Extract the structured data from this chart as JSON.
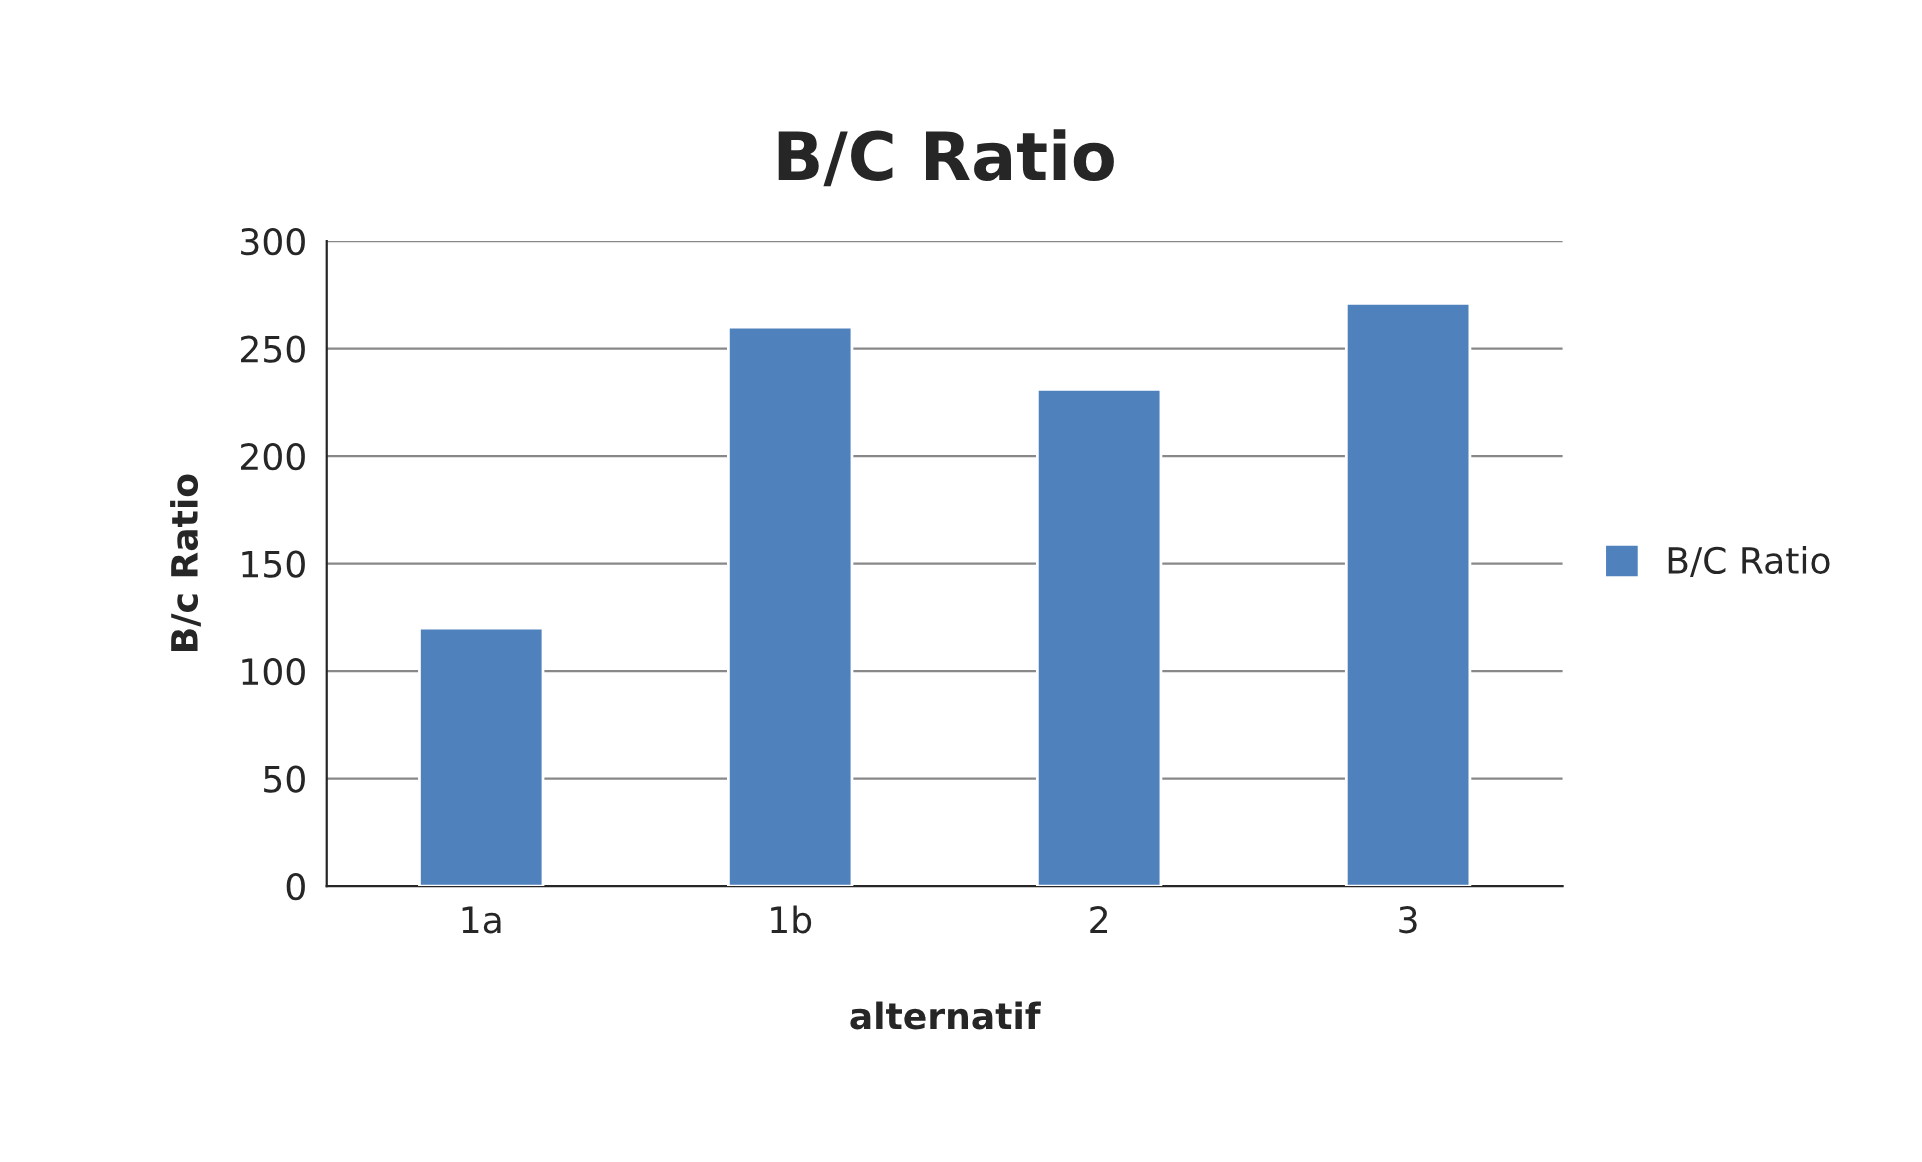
{
  "chart_data": {
    "type": "bar",
    "title": "B/C Ratio",
    "xlabel": "alternatif",
    "ylabel": "B/c Ratio",
    "categories": [
      "1a",
      "1b",
      "2",
      "3"
    ],
    "series": [
      {
        "name": "B/C Ratio",
        "color": "#4f81bd",
        "values": [
          120,
          260,
          231,
          271
        ]
      }
    ],
    "ylim": [
      0,
      300
    ],
    "yticks": [
      0,
      50,
      100,
      150,
      200,
      250,
      300
    ],
    "grid": "y",
    "legend": "right"
  }
}
